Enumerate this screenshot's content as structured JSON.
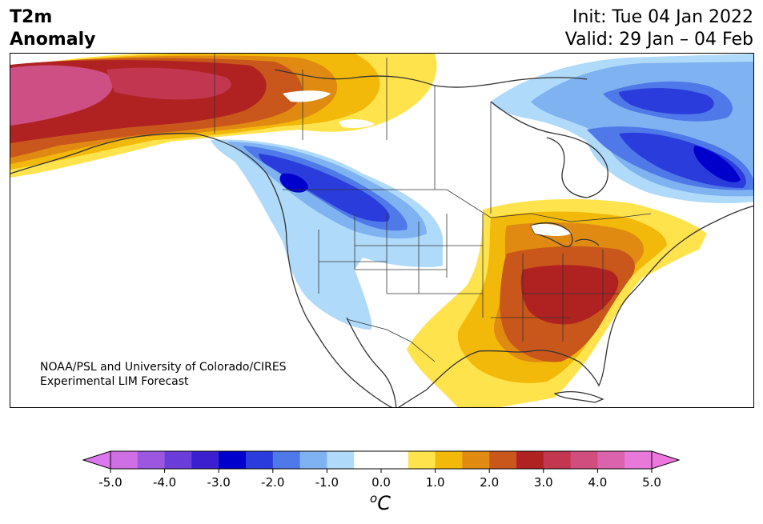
{
  "header": {
    "title_line1": "T2m",
    "title_line2": "Anomaly",
    "init_text": "Init: Tue 04 Jan 2022",
    "valid_text": "Valid: 29 Jan – 04 Feb"
  },
  "map": {
    "region": "North America",
    "credit_line1": "NOAA/PSL and University of Colorado/CIRES",
    "credit_line2": "Experimental LIM Forecast"
  },
  "colorbar": {
    "tick_labels": [
      "-5.0",
      "-4.0",
      "-3.0",
      "-2.0",
      "-1.0",
      "0.0",
      "1.0",
      "2.0",
      "3.0",
      "4.0",
      "5.0"
    ],
    "unit_base": "o",
    "unit_main": "C",
    "colors": [
      "#cf6fe6",
      "#9b57df",
      "#6a3ddb",
      "#3b1fd0",
      "#0000cc",
      "#2a3cdc",
      "#4f78e8",
      "#7fb2f0",
      "#b0dafa",
      "#ffffff",
      "#ffffff",
      "#ffe34d",
      "#f2b80a",
      "#e08a12",
      "#c9561a",
      "#b02222",
      "#c23650",
      "#cf4e7e",
      "#db62ad",
      "#e878da"
    ],
    "extend_min_color": "#dd77ee",
    "extend_max_color": "#ee77dd"
  },
  "anomaly_colors": {
    "pink": "#cd4f83",
    "dark_red": "#b02222",
    "red_orange": "#c9561a",
    "orange": "#e08a12",
    "gold": "#f2b80a",
    "yellow": "#ffe34d",
    "light_blue": "#b0dafa",
    "mid_blue": "#7fb2f0",
    "blue": "#4f78e8",
    "strong_blue": "#2a3cdc",
    "deep_blue": "#0000cc"
  }
}
